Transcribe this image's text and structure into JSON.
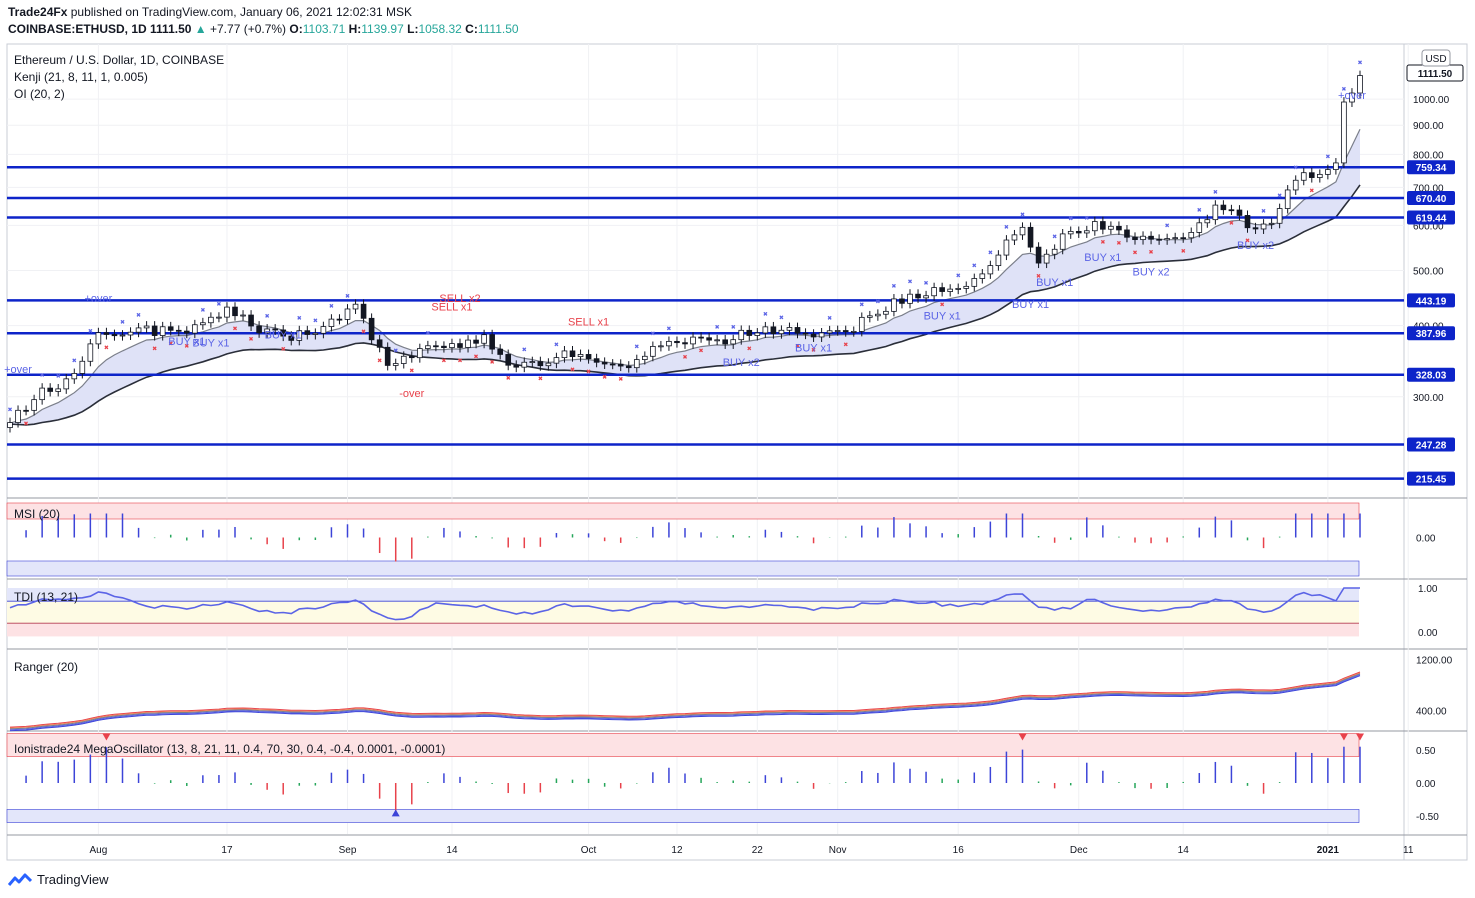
{
  "header": {
    "publisher": "Trade24Fx",
    "published_text": "published on TradingView.com, January 06, 2021 12:02:31 MSK",
    "symbol": "COINBASE:ETHUSD, 1D",
    "last": "1111.50",
    "change": "+7.77 (+0.7%)",
    "o_label": "O:",
    "o": "1103.71",
    "h_label": "H:",
    "h": "1139.97",
    "l_label": "L:",
    "l": "1058.32",
    "c_label": "C:",
    "c": "1111.50"
  },
  "legend": {
    "main_title": "Ethereum / U.S. Dollar, 1D, COINBASE",
    "kenji": "Kenji (21, 8, 11, 1, 0.005)",
    "oi": "OI (20, 2)",
    "msi": "MSI (20)",
    "tdi": "TDI (13, 21)",
    "ranger": "Ranger (20)",
    "mega": "Ionistrade24 MegaOscillator (13, 8, 21, 11, 0.4, 70, 30, 0.4, -0.4, 0.0001, -0.0001)"
  },
  "currency_badge": "USD",
  "brand": "TradingView",
  "colors": {
    "level_line": "#0d24c9",
    "up_candle": "#ffffff",
    "down_candle": "#131722",
    "bull_marker": "#5b64e6",
    "bear_marker": "#e8424b",
    "band_fill": "#dfe2f7",
    "osc_pos": "#3c44d8",
    "osc_neg": "#e8424b",
    "osc_neutral": "#26a65b"
  },
  "chart_data": [
    {
      "type": "candlestick",
      "title": "Ethereum / U.S. Dollar, 1D, COINBASE",
      "ylabel": "USD",
      "ylim": [
        200,
        1250
      ],
      "y_scale": "log",
      "y_ticks": [
        300,
        400,
        500,
        600,
        700,
        800,
        900,
        1000
      ],
      "y_tick_labels": [
        "300.00",
        "400.00",
        "500.00",
        "600.00",
        "700.00",
        "800.00",
        "900.00",
        "1000.00"
      ],
      "x_tick_labels": [
        "Aug",
        "17",
        "Sep",
        "14",
        "Oct",
        "12",
        "22",
        "Nov",
        "16",
        "Dec",
        "14",
        "2021",
        "11"
      ],
      "horizontal_levels": [
        759.34,
        670.4,
        619.44,
        443.19,
        387.96,
        328.03,
        247.28,
        215.45
      ],
      "level_labels": [
        "759.34",
        "670.40",
        "619.44",
        "443.19",
        "387.96",
        "328.03",
        "247.28",
        "215.45"
      ],
      "last_price": 1111.5,
      "last_price_label": "1111.50",
      "close_path": [
        [
          "2020-07-21",
          270
        ],
        [
          "2020-07-25",
          305
        ],
        [
          "2020-07-28",
          318
        ],
        [
          "2020-08-01",
          385
        ],
        [
          "2020-08-05",
          395
        ],
        [
          "2020-08-10",
          390
        ],
        [
          "2020-08-14",
          400
        ],
        [
          "2020-08-17",
          425
        ],
        [
          "2020-08-21",
          395
        ],
        [
          "2020-08-25",
          382
        ],
        [
          "2020-08-29",
          395
        ],
        [
          "2020-09-02",
          440
        ],
        [
          "2020-09-04",
          385
        ],
        [
          "2020-09-06",
          335
        ],
        [
          "2020-09-10",
          360
        ],
        [
          "2020-09-14",
          370
        ],
        [
          "2020-09-18",
          380
        ],
        [
          "2020-09-21",
          345
        ],
        [
          "2020-09-24",
          340
        ],
        [
          "2020-09-28",
          355
        ],
        [
          "2020-10-02",
          345
        ],
        [
          "2020-10-06",
          340
        ],
        [
          "2020-10-10",
          370
        ],
        [
          "2020-10-14",
          380
        ],
        [
          "2020-10-18",
          375
        ],
        [
          "2020-10-22",
          395
        ],
        [
          "2020-10-26",
          390
        ],
        [
          "2020-10-30",
          385
        ],
        [
          "2020-11-02",
          390
        ],
        [
          "2020-11-05",
          415
        ],
        [
          "2020-11-09",
          445
        ],
        [
          "2020-11-13",
          460
        ],
        [
          "2020-11-17",
          475
        ],
        [
          "2020-11-20",
          510
        ],
        [
          "2020-11-24",
          600
        ],
        [
          "2020-11-26",
          510
        ],
        [
          "2020-11-30",
          590
        ],
        [
          "2020-12-03",
          600
        ],
        [
          "2020-12-06",
          590
        ],
        [
          "2020-12-09",
          570
        ],
        [
          "2020-12-12",
          560
        ],
        [
          "2020-12-15",
          590
        ],
        [
          "2020-12-18",
          645
        ],
        [
          "2020-12-21",
          625
        ],
        [
          "2020-12-23",
          580
        ],
        [
          "2020-12-26",
          630
        ],
        [
          "2020-12-28",
          730
        ],
        [
          "2020-12-31",
          740
        ],
        [
          "2021-01-02",
          770
        ],
        [
          "2021-01-03",
          975
        ],
        [
          "2021-01-04",
          1040
        ],
        [
          "2021-01-05",
          1111.5
        ]
      ],
      "annotations": [
        "+over",
        "-over",
        "BUY x1",
        "BUY x2",
        "SELL x1",
        "SELL x2"
      ]
    },
    {
      "type": "bar",
      "title": "MSI (20)",
      "y_ticks": [
        0.0
      ],
      "y_tick_labels": [
        "0.00"
      ]
    },
    {
      "type": "line",
      "title": "TDI (13, 21)",
      "y_ticks": [
        1.0,
        0.0
      ],
      "y_tick_labels": [
        "1.00",
        "0.00"
      ]
    },
    {
      "type": "line",
      "title": "Ranger (20)",
      "y_ticks": [
        1200,
        400
      ],
      "y_tick_labels": [
        "1200.00",
        "400.00"
      ]
    },
    {
      "type": "bar",
      "title": "Ionistrade24 MegaOscillator (13, 8, 21, 11, 0.4, 70, 30, 0.4, -0.4, 0.0001, -0.0001)",
      "y_ticks": [
        0.5,
        0.0,
        -0.5
      ],
      "y_tick_labels": [
        "0.50",
        "0.00",
        "-0.50"
      ]
    }
  ]
}
